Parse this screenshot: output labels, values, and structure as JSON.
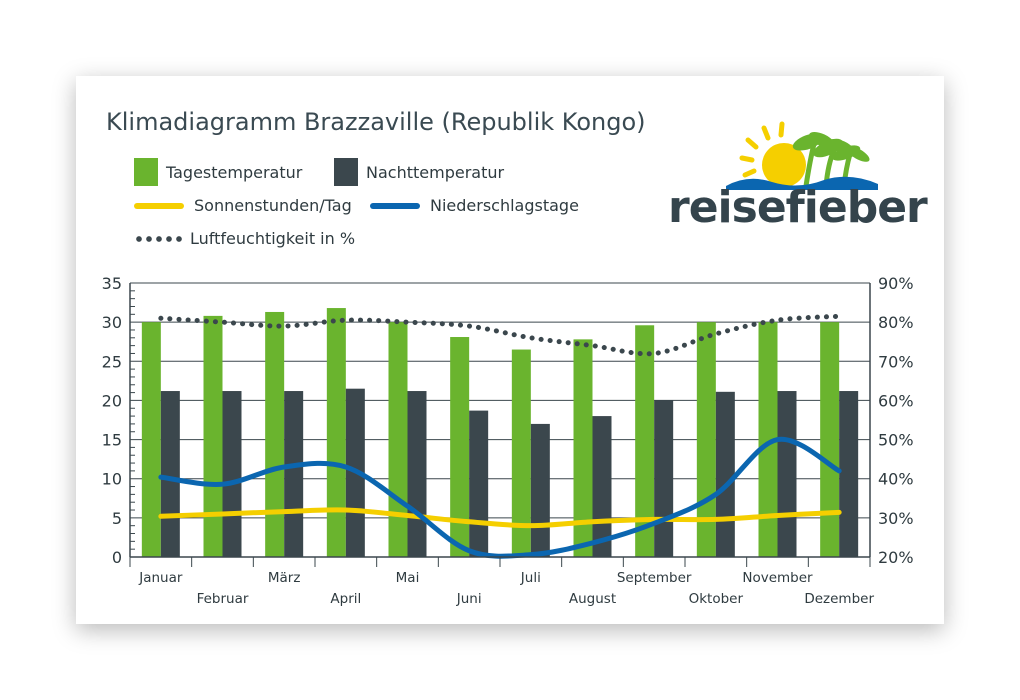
{
  "title": "Klimadiagramm Brazzaville (Republik Kongo)",
  "logo": {
    "text": "reisefieber"
  },
  "legend": [
    {
      "label": "Tagestemperatur",
      "kind": "box",
      "color": "#6ab42e"
    },
    {
      "label": "Nachttemperatur",
      "kind": "box",
      "color": "#3b474d"
    },
    {
      "label": "Sonnenstunden/Tag",
      "kind": "line",
      "color": "#f5cf00"
    },
    {
      "label": "Niederschlagstage",
      "kind": "line",
      "color": "#0b66b0"
    },
    {
      "label": "Luftfeuchtigkeit in %",
      "kind": "dots",
      "color": "#3b474d"
    }
  ],
  "chart_data": {
    "type": "bar",
    "categories": [
      "Januar",
      "Februar",
      "März",
      "April",
      "Mai",
      "Juni",
      "Juli",
      "August",
      "September",
      "Oktober",
      "November",
      "Dezember"
    ],
    "y_left": {
      "min": 0,
      "max": 35,
      "ticks": [
        "0",
        "5",
        "10",
        "15",
        "20",
        "25",
        "30",
        "35"
      ]
    },
    "y_right": {
      "min": 20,
      "max": 90,
      "ticks": [
        "20%",
        "30%",
        "40%",
        "50%",
        "60%",
        "70%",
        "80%",
        "90%"
      ]
    },
    "grid": true,
    "legend_position": "top-left",
    "series": [
      {
        "name": "Tagestemperatur",
        "type": "bar",
        "axis": "left",
        "color": "#6ab42e",
        "values": [
          30,
          30.8,
          31.3,
          31.8,
          30,
          28.1,
          26.5,
          27.8,
          29.6,
          30,
          30,
          30
        ]
      },
      {
        "name": "Nachttemperatur",
        "type": "bar",
        "axis": "left",
        "color": "#3b474d",
        "values": [
          21.2,
          21.2,
          21.2,
          21.5,
          21.2,
          18.7,
          17,
          18,
          20,
          21.1,
          21.2,
          21.2
        ]
      },
      {
        "name": "Sonnenstunden/Tag",
        "type": "line",
        "axis": "left",
        "color": "#f5cf00",
        "values": [
          5.2,
          5.5,
          5.8,
          6,
          5.3,
          4.5,
          4,
          4.5,
          4.8,
          4.8,
          5.3,
          5.7
        ]
      },
      {
        "name": "Niederschlagstage",
        "type": "line",
        "axis": "left",
        "color": "#0b66b0",
        "values": [
          10.2,
          9.3,
          11.5,
          11.5,
          6.5,
          0.8,
          0.3,
          1.8,
          4.3,
          8,
          15,
          11
        ]
      },
      {
        "name": "Luftfeuchtigkeit in %",
        "type": "dotted-line",
        "axis": "right",
        "color": "#3b474d",
        "values": [
          81,
          80,
          79,
          80.5,
          80,
          79,
          76,
          74,
          72,
          77,
          80.5,
          81.5
        ]
      }
    ]
  }
}
